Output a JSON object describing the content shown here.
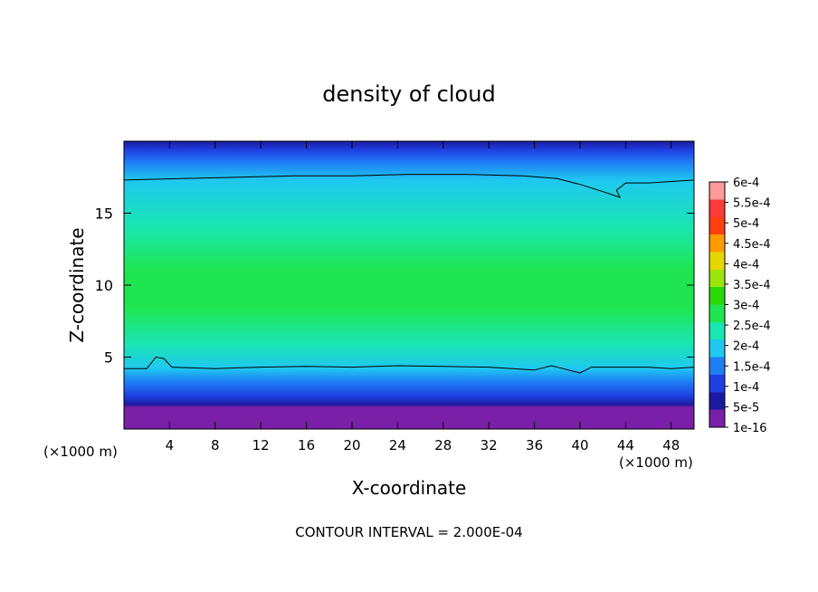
{
  "chart_data": {
    "type": "heatmap",
    "title": "density of cloud",
    "xlabel": "X-coordinate",
    "ylabel": "Z-coordinate",
    "x_unit_left": "(×1000 m)",
    "x_unit_right": "(×1000 m)",
    "footer": "CONTOUR INTERVAL = 2.000E-04",
    "xlim": [
      0,
      50
    ],
    "ylim": [
      0,
      20
    ],
    "x_ticks": [
      "4",
      "8",
      "12",
      "16",
      "20",
      "24",
      "28",
      "32",
      "36",
      "40",
      "44",
      "48"
    ],
    "y_ticks": [
      "5",
      "10",
      "15"
    ],
    "colorbar": {
      "labels": [
        "1e-16",
        "5e-5",
        "1e-4",
        "1.5e-4",
        "2e-4",
        "2.5e-4",
        "3e-4",
        "3.5e-4",
        "4e-4",
        "4.5e-4",
        "5e-4",
        "5.5e-4",
        "6e-4"
      ],
      "colors": [
        "#7a1fa8",
        "#1a1aa0",
        "#1f3fe0",
        "#1f7ff5",
        "#1fc8f0",
        "#19e6b0",
        "#1fe650",
        "#2bd80a",
        "#9be60a",
        "#e6d600",
        "#ff9a00",
        "#ff4010",
        "#ff3a3a",
        "#ff9a9a"
      ]
    },
    "vertical_profile": [
      {
        "z": 0.0,
        "value": 0
      },
      {
        "z": 1.5,
        "value": 0
      },
      {
        "z": 1.7,
        "value": 5e-05
      },
      {
        "z": 2.3,
        "value": 0.0001
      },
      {
        "z": 3.3,
        "value": 0.00015
      },
      {
        "z": 4.2,
        "value": 0.0002
      },
      {
        "z": 6.0,
        "value": 0.00027
      },
      {
        "z": 8.5,
        "value": 0.00031
      },
      {
        "z": 11.0,
        "value": 0.00031
      },
      {
        "z": 14.0,
        "value": 0.00027
      },
      {
        "z": 17.3,
        "value": 0.0002
      },
      {
        "z": 18.5,
        "value": 0.00015
      },
      {
        "z": 19.4,
        "value": 0.0001
      },
      {
        "z": 20.0,
        "value": 8e-05
      }
    ],
    "contour_lines": [
      {
        "level": 0.0002,
        "points": [
          [
            0,
            17.3
          ],
          [
            5,
            17.4
          ],
          [
            10,
            17.5
          ],
          [
            15,
            17.6
          ],
          [
            20,
            17.6
          ],
          [
            25,
            17.7
          ],
          [
            30,
            17.7
          ],
          [
            35,
            17.6
          ],
          [
            38,
            17.4
          ],
          [
            40,
            17.0
          ],
          [
            42,
            16.5
          ],
          [
            43.5,
            16.1
          ],
          [
            43.2,
            16.6
          ],
          [
            44,
            17.1
          ],
          [
            46,
            17.1
          ],
          [
            48,
            17.2
          ],
          [
            50,
            17.3
          ]
        ]
      },
      {
        "level": 0.0002,
        "points": [
          [
            0,
            4.2
          ],
          [
            2,
            4.2
          ],
          [
            2.8,
            5.0
          ],
          [
            3.5,
            4.9
          ],
          [
            4.2,
            4.3
          ],
          [
            8,
            4.2
          ],
          [
            12,
            4.3
          ],
          [
            16,
            4.35
          ],
          [
            20,
            4.3
          ],
          [
            24,
            4.4
          ],
          [
            28,
            4.35
          ],
          [
            32,
            4.3
          ],
          [
            36,
            4.1
          ],
          [
            37.5,
            4.4
          ],
          [
            38.5,
            4.2
          ],
          [
            40,
            3.9
          ],
          [
            41,
            4.3
          ],
          [
            44,
            4.3
          ],
          [
            46,
            4.3
          ],
          [
            48,
            4.2
          ],
          [
            50,
            4.3
          ]
        ]
      }
    ]
  }
}
